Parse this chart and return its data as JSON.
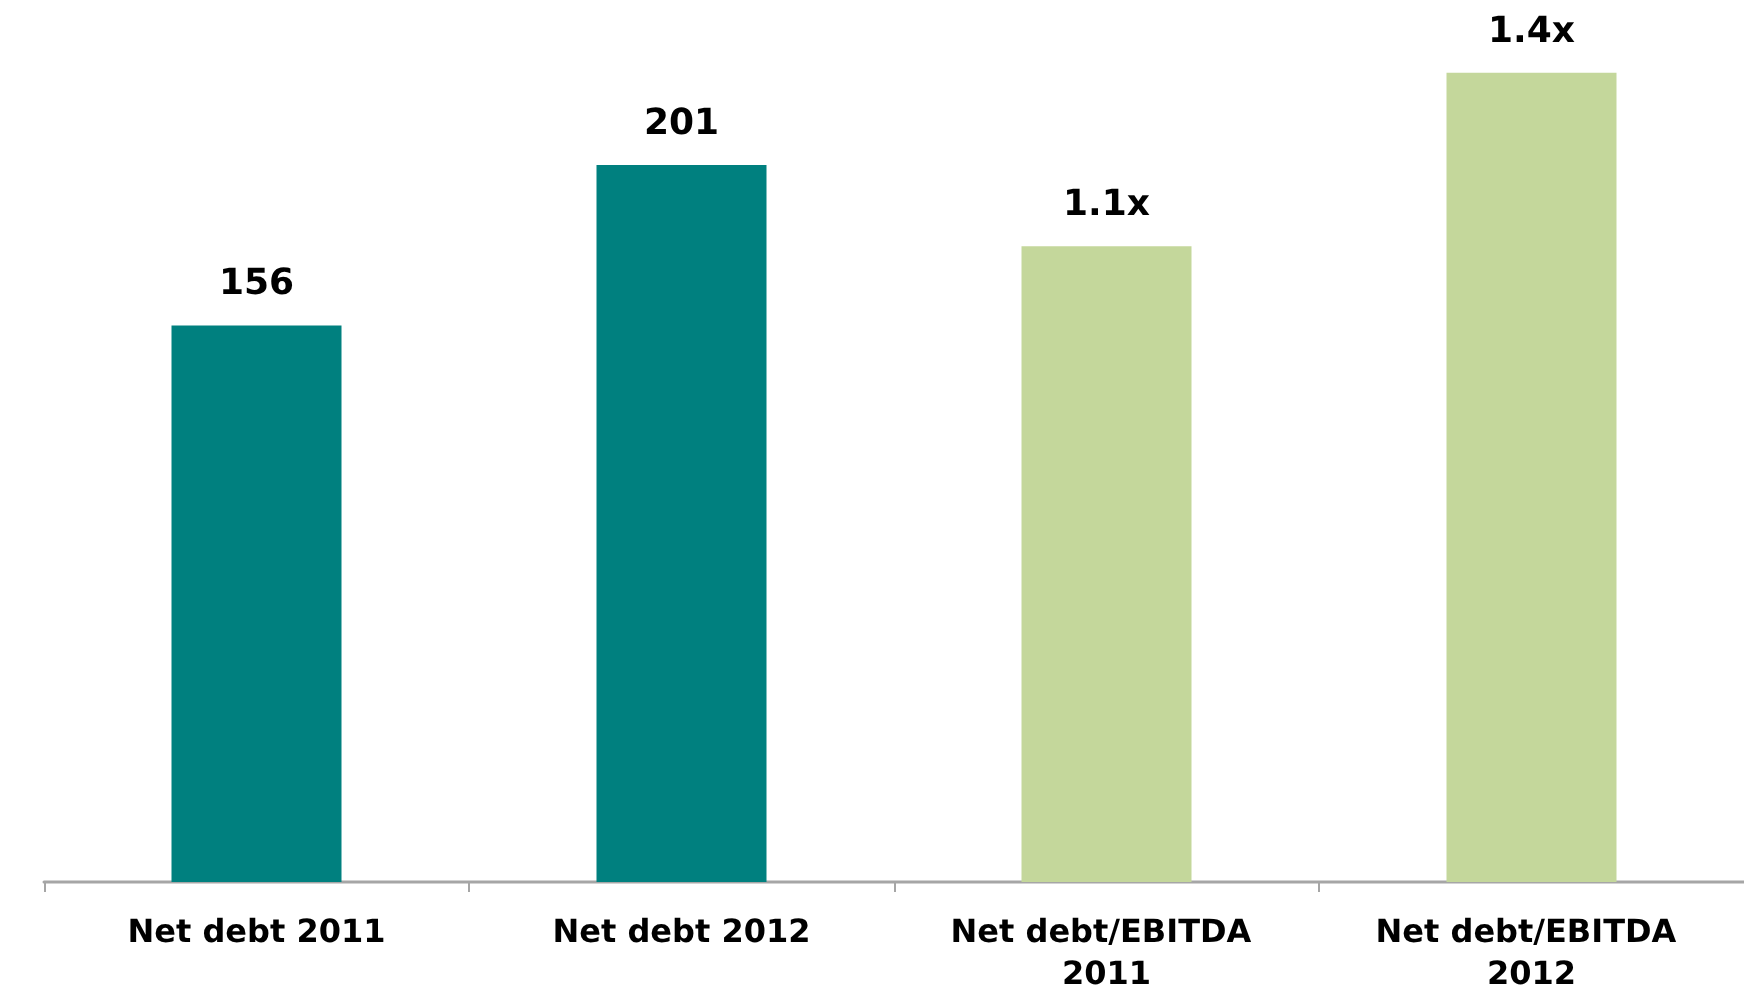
{
  "chart_data": {
    "type": "bar",
    "categories": [
      "Net debt 2011",
      "Net debt 2012",
      "Net debt/EBITDA 2011",
      "Net debt/EBITDA 2012"
    ],
    "series": [
      {
        "color": "#00807f",
        "values": [
          156,
          201,
          null,
          null
        ],
        "value_labels": [
          "156",
          "201",
          null,
          null
        ]
      },
      {
        "color": "#c4d79b",
        "axis": "y2",
        "values": [
          null,
          null,
          1.1,
          1.4
        ],
        "value_labels": [
          null,
          null,
          "1.1x",
          "1.4x"
        ]
      }
    ],
    "tick_labels": "x",
    "grid": false
  }
}
